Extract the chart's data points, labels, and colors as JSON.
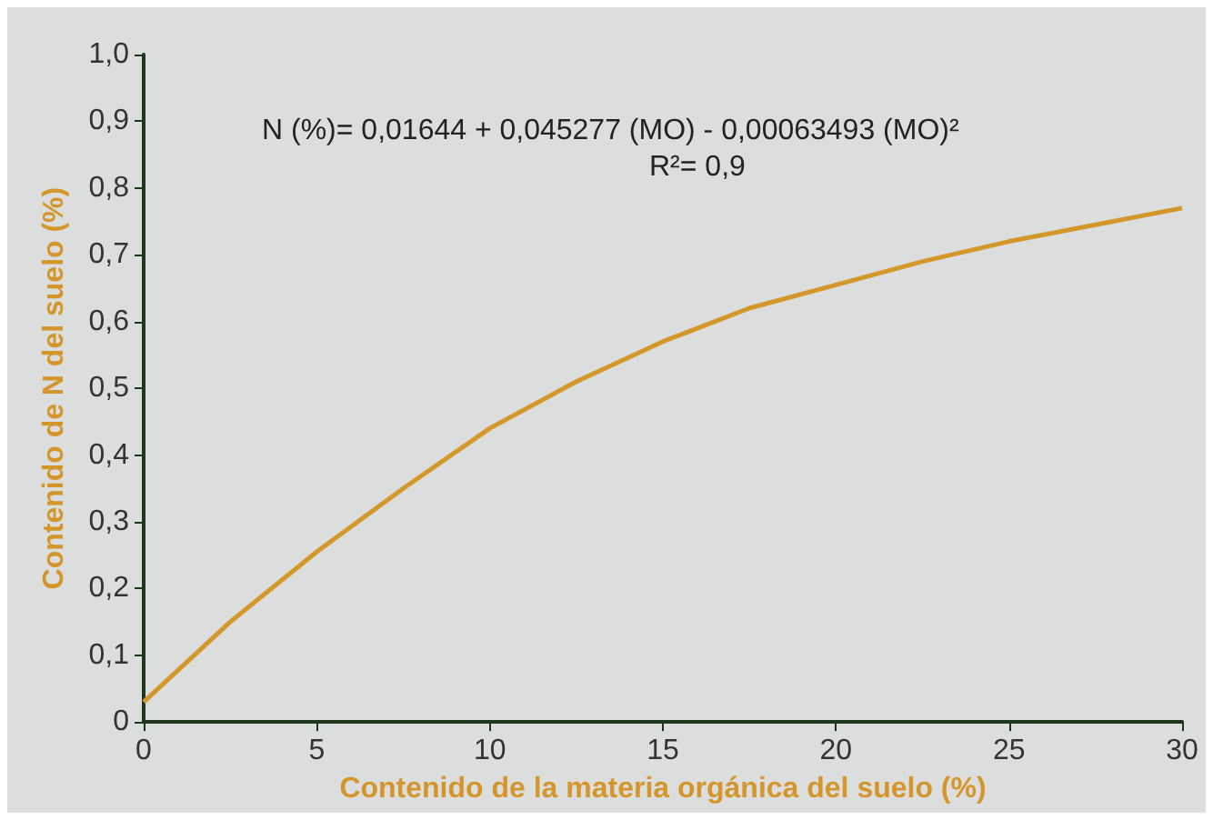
{
  "chart_data": {
    "type": "line",
    "xlabel": "Contenido de la materia orgánica del suelo (%)",
    "ylabel": "Contenido de N del suelo (%)",
    "annotations": [
      "N (%)= 0,01644 + 0,045277 (MO) - 0,00063493 (MO)²",
      "R²= 0,9"
    ],
    "series": [
      {
        "color": "#d4982a",
        "x": [
          0,
          2.5,
          5,
          7.5,
          10,
          12.5,
          15,
          17.5,
          20,
          22.5,
          25,
          27.5,
          30
        ],
        "values": [
          0.03,
          0.15,
          0.255,
          0.35,
          0.44,
          0.51,
          0.57,
          0.62,
          0.655,
          0.69,
          0.72,
          0.745,
          0.77
        ]
      }
    ],
    "xlim": [
      0,
      30
    ],
    "xticks": [
      0,
      5,
      10,
      15,
      20,
      25,
      30
    ],
    "ylim": [
      0,
      1
    ],
    "yticks": [
      {
        "value": 0,
        "label": "0"
      },
      {
        "value": 0.1,
        "label": "0,1"
      },
      {
        "value": 0.2,
        "label": "0,2"
      },
      {
        "value": 0.3,
        "label": "0,3"
      },
      {
        "value": 0.4,
        "label": "0,4"
      },
      {
        "value": 0.5,
        "label": "0,5"
      },
      {
        "value": 0.6,
        "label": "0,6"
      },
      {
        "value": 0.7,
        "label": "0,7"
      },
      {
        "value": 0.8,
        "label": "0,8"
      },
      {
        "value": 0.9,
        "label": "0,9"
      },
      {
        "value": 1,
        "label": "1,0"
      }
    ],
    "marker": "none",
    "line_style": "solid"
  }
}
